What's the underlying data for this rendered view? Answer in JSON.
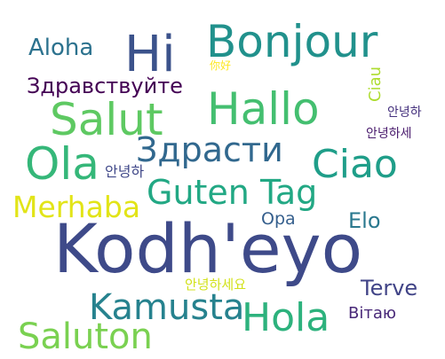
{
  "words": {
    "kodheyo": {
      "text": "Kodh'eyo",
      "color": "#3e4a89"
    },
    "hi": {
      "text": "Hi",
      "color": "#3b528b"
    },
    "bonjour": {
      "text": "Bonjour",
      "color": "#21918c"
    },
    "salut": {
      "text": "Salut",
      "color": "#5ec962"
    },
    "hallo": {
      "text": "Hallo",
      "color": "#44bf70"
    },
    "zdrasti": {
      "text": "Здрасти",
      "color": "#31688e"
    },
    "ola": {
      "text": "Ola",
      "color": "#35b779"
    },
    "ciao": {
      "text": "Ciao",
      "color": "#1f9e89"
    },
    "guten_tag": {
      "text": "Guten Tag",
      "color": "#22a884"
    },
    "merhaba": {
      "text": "Merhaba",
      "color": "#e2e418"
    },
    "aloha": {
      "text": "Aloha",
      "color": "#2c728e"
    },
    "zdravstvuyte": {
      "text": "Здравствуйте",
      "color": "#440154"
    },
    "kamusta": {
      "text": "Kamusta",
      "color": "#26828e"
    },
    "hola": {
      "text": "Hola",
      "color": "#2db27d"
    },
    "saluton": {
      "text": "Saluton",
      "color": "#7ad151"
    },
    "terve": {
      "text": "Terve",
      "color": "#414487"
    },
    "elo": {
      "text": "Elo",
      "color": "#2a788e"
    },
    "opa": {
      "text": "Opa",
      "color": "#355f8d"
    },
    "vitayu": {
      "text": "Вітаю",
      "color": "#482878"
    },
    "ciau": {
      "text": "Ciau",
      "color": "#addc30"
    },
    "cjk_small": {
      "text": "你好",
      "color": "#fde725"
    },
    "hangul_1": {
      "text": "안녕하",
      "color": "#46327e"
    },
    "hangul_2": {
      "text": "안녕하세",
      "color": "#481a6c"
    },
    "hangul_3": {
      "text": "안녕하",
      "color": "#3f4788"
    },
    "hangul_4": {
      "text": "안녕하세요",
      "color": "#d2e21b"
    }
  }
}
